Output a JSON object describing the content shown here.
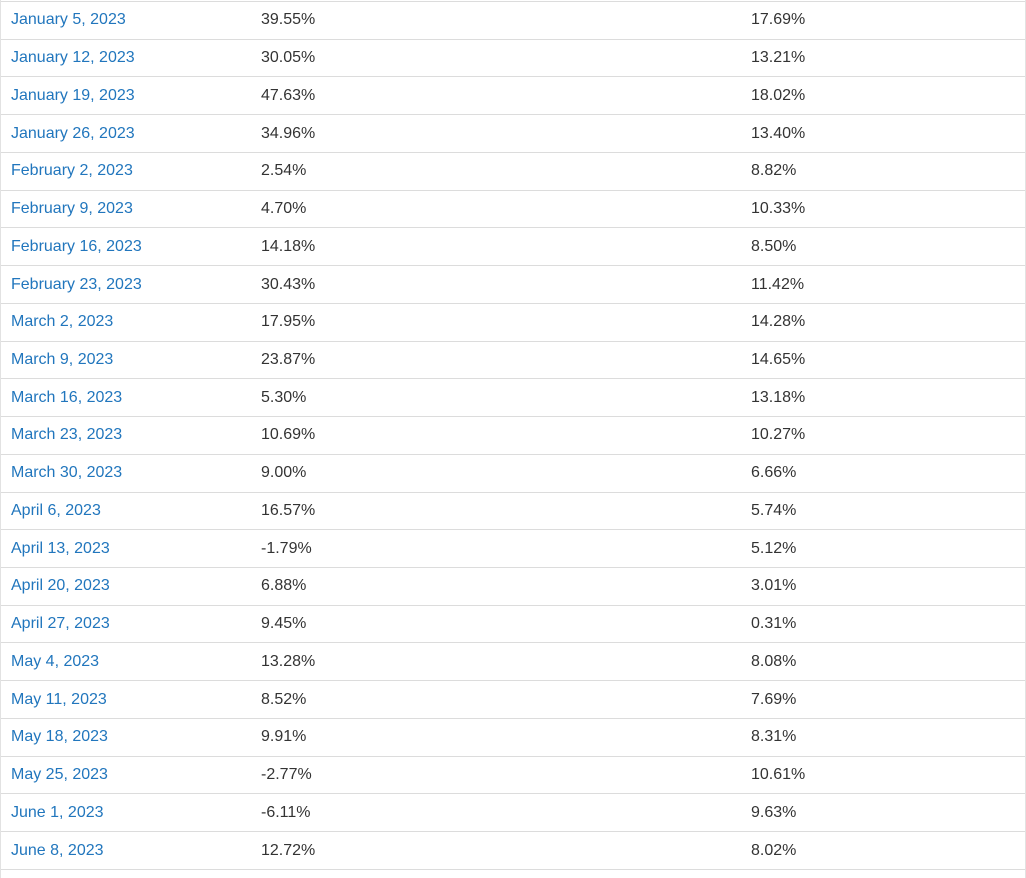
{
  "colors": {
    "link_blue": "#2176bd",
    "value_text": "#333333",
    "row_divider": "#dcdcdc",
    "background": "#ffffff"
  },
  "table": {
    "rows": [
      {
        "date": "January 5, 2023",
        "value1": "39.55%",
        "value2": "17.69%"
      },
      {
        "date": "January 12, 2023",
        "value1": "30.05%",
        "value2": "13.21%"
      },
      {
        "date": "January 19, 2023",
        "value1": "47.63%",
        "value2": "18.02%"
      },
      {
        "date": "January 26, 2023",
        "value1": "34.96%",
        "value2": "13.40%"
      },
      {
        "date": "February 2, 2023",
        "value1": "2.54%",
        "value2": "8.82%"
      },
      {
        "date": "February 9, 2023",
        "value1": "4.70%",
        "value2": "10.33%"
      },
      {
        "date": "February 16, 2023",
        "value1": "14.18%",
        "value2": "8.50%"
      },
      {
        "date": "February 23, 2023",
        "value1": "30.43%",
        "value2": "11.42%"
      },
      {
        "date": "March 2, 2023",
        "value1": "17.95%",
        "value2": "14.28%"
      },
      {
        "date": "March 9, 2023",
        "value1": "23.87%",
        "value2": "14.65%"
      },
      {
        "date": "March 16, 2023",
        "value1": "5.30%",
        "value2": "13.18%"
      },
      {
        "date": "March 23, 2023",
        "value1": "10.69%",
        "value2": "10.27%"
      },
      {
        "date": "March 30, 2023",
        "value1": "9.00%",
        "value2": "6.66%"
      },
      {
        "date": "April 6, 2023",
        "value1": "16.57%",
        "value2": "5.74%"
      },
      {
        "date": "April 13, 2023",
        "value1": "-1.79%",
        "value2": "5.12%"
      },
      {
        "date": "April 20, 2023",
        "value1": "6.88%",
        "value2": "3.01%"
      },
      {
        "date": "April 27, 2023",
        "value1": "9.45%",
        "value2": "0.31%"
      },
      {
        "date": "May 4, 2023",
        "value1": "13.28%",
        "value2": "8.08%"
      },
      {
        "date": "May 11, 2023",
        "value1": "8.52%",
        "value2": "7.69%"
      },
      {
        "date": "May 18, 2023",
        "value1": "9.91%",
        "value2": "8.31%"
      },
      {
        "date": "May 25, 2023",
        "value1": "-2.77%",
        "value2": "10.61%"
      },
      {
        "date": "June 1, 2023",
        "value1": "-6.11%",
        "value2": "9.63%"
      },
      {
        "date": "June 8, 2023",
        "value1": "12.72%",
        "value2": "8.02%"
      }
    ]
  }
}
